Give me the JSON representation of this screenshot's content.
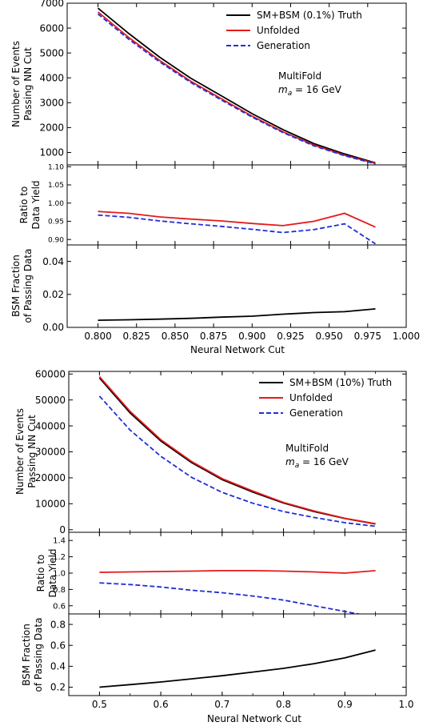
{
  "figures": [
    {
      "legend": [
        {
          "label": "SM+BSM (0.1%) Truth",
          "color": "#000000",
          "dash": "solid"
        },
        {
          "label": "Unfolded",
          "color": "#e41a1c",
          "dash": "solid"
        },
        {
          "label": "Generation",
          "color": "#1f2fd6",
          "dash": "dashed"
        }
      ],
      "annotation_line1": "MultiFold",
      "annotation_line2": "m_a = 16 GeV",
      "xlabel": "Neural Network Cut",
      "ylabel_top": [
        "Number of Events",
        "Passing NN Cut"
      ],
      "ylabel_mid": [
        "Ratio to",
        "Data Yield"
      ],
      "ylabel_bot": [
        "BSM Fraction",
        "of Passing Data"
      ]
    },
    {
      "legend": [
        {
          "label": "SM+BSM (10%) Truth",
          "color": "#000000",
          "dash": "solid"
        },
        {
          "label": "Unfolded",
          "color": "#e41a1c",
          "dash": "solid"
        },
        {
          "label": "Generation",
          "color": "#1f2fd6",
          "dash": "dashed"
        }
      ],
      "annotation_line1": "MultiFold",
      "annotation_line2": "m_a = 16 GeV",
      "xlabel": "Neural Network Cut",
      "ylabel_top": [
        "Number of Events",
        "Passing NN Cut"
      ],
      "ylabel_mid": [
        "Ratio to",
        "Data Yield"
      ],
      "ylabel_bot": [
        "BSM Fraction",
        "of Passing Data"
      ]
    }
  ],
  "chart_data": [
    {
      "type": "line",
      "panel": "events",
      "xlim": [
        0.78,
        1.0
      ],
      "ylim": [
        500,
        7000
      ],
      "yticks": [
        1000,
        2000,
        3000,
        4000,
        5000,
        6000,
        7000
      ],
      "x": [
        0.8,
        0.82,
        0.84,
        0.86,
        0.88,
        0.9,
        0.92,
        0.94,
        0.96,
        0.98
      ],
      "series": [
        {
          "name": "SM+BSM (0.1%) Truth",
          "values": [
            6800,
            5780,
            4830,
            3990,
            3280,
            2560,
            1920,
            1360,
            940,
            580
          ]
        },
        {
          "name": "Unfolded",
          "values": [
            6650,
            5620,
            4700,
            3870,
            3160,
            2460,
            1830,
            1300,
            890,
            560
          ]
        },
        {
          "name": "Generation",
          "values": [
            6570,
            5550,
            4640,
            3820,
            3110,
            2420,
            1800,
            1270,
            870,
            540
          ]
        }
      ]
    },
    {
      "type": "line",
      "panel": "ratio",
      "xlim": [
        0.78,
        1.0
      ],
      "ylim": [
        0.885,
        1.105
      ],
      "yticks": [
        0.9,
        0.95,
        1.0,
        1.05,
        1.1
      ],
      "x": [
        0.8,
        0.82,
        0.84,
        0.86,
        0.88,
        0.9,
        0.92,
        0.94,
        0.96,
        0.98
      ],
      "series": [
        {
          "name": "Unfolded",
          "values": [
            0.977,
            0.972,
            0.962,
            0.956,
            0.951,
            0.944,
            0.938,
            0.95,
            0.972,
            0.934
          ]
        },
        {
          "name": "Generation",
          "values": [
            0.967,
            0.961,
            0.951,
            0.943,
            0.936,
            0.928,
            0.919,
            0.927,
            0.943,
            0.888
          ]
        }
      ]
    },
    {
      "type": "line",
      "panel": "bsm_fraction",
      "xlim": [
        0.78,
        1.0
      ],
      "ylim": [
        0.0,
        0.05
      ],
      "yticks": [
        0.0,
        0.02,
        0.04
      ],
      "xticks": [
        0.8,
        0.825,
        0.85,
        0.875,
        0.9,
        0.925,
        0.95,
        0.975,
        1.0
      ],
      "x": [
        0.8,
        0.82,
        0.84,
        0.86,
        0.88,
        0.9,
        0.92,
        0.94,
        0.96,
        0.98
      ],
      "series": [
        {
          "name": "SM+BSM (0.1%) Truth",
          "values": [
            0.0043,
            0.0046,
            0.005,
            0.0055,
            0.0062,
            0.0068,
            0.008,
            0.009,
            0.0095,
            0.0112
          ]
        }
      ]
    },
    {
      "type": "line",
      "panel": "events",
      "xlim": [
        0.45,
        1.0
      ],
      "ylim": [
        -1000,
        61000
      ],
      "yticks": [
        0,
        10000,
        20000,
        30000,
        40000,
        50000,
        60000
      ],
      "x": [
        0.5,
        0.55,
        0.6,
        0.65,
        0.7,
        0.75,
        0.8,
        0.85,
        0.9,
        0.95
      ],
      "series": [
        {
          "name": "SM+BSM (10%) Truth",
          "values": [
            58500,
            45000,
            34200,
            25900,
            19300,
            14500,
            10300,
            7000,
            4300,
            2200
          ]
        },
        {
          "name": "Unfolded",
          "values": [
            59000,
            45600,
            34700,
            26300,
            19700,
            14900,
            10500,
            7200,
            4400,
            2300
          ]
        },
        {
          "name": "Generation",
          "values": [
            51500,
            38400,
            28300,
            20200,
            14400,
            10200,
            7000,
            4700,
            2700,
            1300
          ]
        }
      ]
    },
    {
      "type": "line",
      "panel": "ratio",
      "xlim": [
        0.45,
        1.0
      ],
      "ylim": [
        0.5,
        1.5
      ],
      "yticks": [
        0.6,
        0.8,
        1.0,
        1.2,
        1.4
      ],
      "x": [
        0.5,
        0.55,
        0.6,
        0.65,
        0.7,
        0.75,
        0.8,
        0.85,
        0.9,
        0.95
      ],
      "series": [
        {
          "name": "Unfolded",
          "values": [
            1.01,
            1.015,
            1.02,
            1.025,
            1.03,
            1.03,
            1.025,
            1.015,
            1.0,
            1.03
          ]
        },
        {
          "name": "Generation",
          "values": [
            0.88,
            0.86,
            0.83,
            0.79,
            0.76,
            0.72,
            0.67,
            0.6,
            0.53,
            0.46
          ]
        }
      ]
    },
    {
      "type": "line",
      "panel": "bsm_fraction",
      "xlim": [
        0.45,
        1.0
      ],
      "ylim": [
        0.12,
        0.9
      ],
      "yticks": [
        0.2,
        0.4,
        0.6,
        0.8
      ],
      "xticks": [
        0.5,
        0.6,
        0.7,
        0.8,
        0.9,
        1.0
      ],
      "x": [
        0.5,
        0.55,
        0.6,
        0.65,
        0.7,
        0.75,
        0.8,
        0.85,
        0.9,
        0.95
      ],
      "series": [
        {
          "name": "SM+BSM (10%) Truth",
          "values": [
            0.2,
            0.225,
            0.25,
            0.28,
            0.31,
            0.345,
            0.38,
            0.425,
            0.48,
            0.555
          ]
        }
      ]
    }
  ]
}
